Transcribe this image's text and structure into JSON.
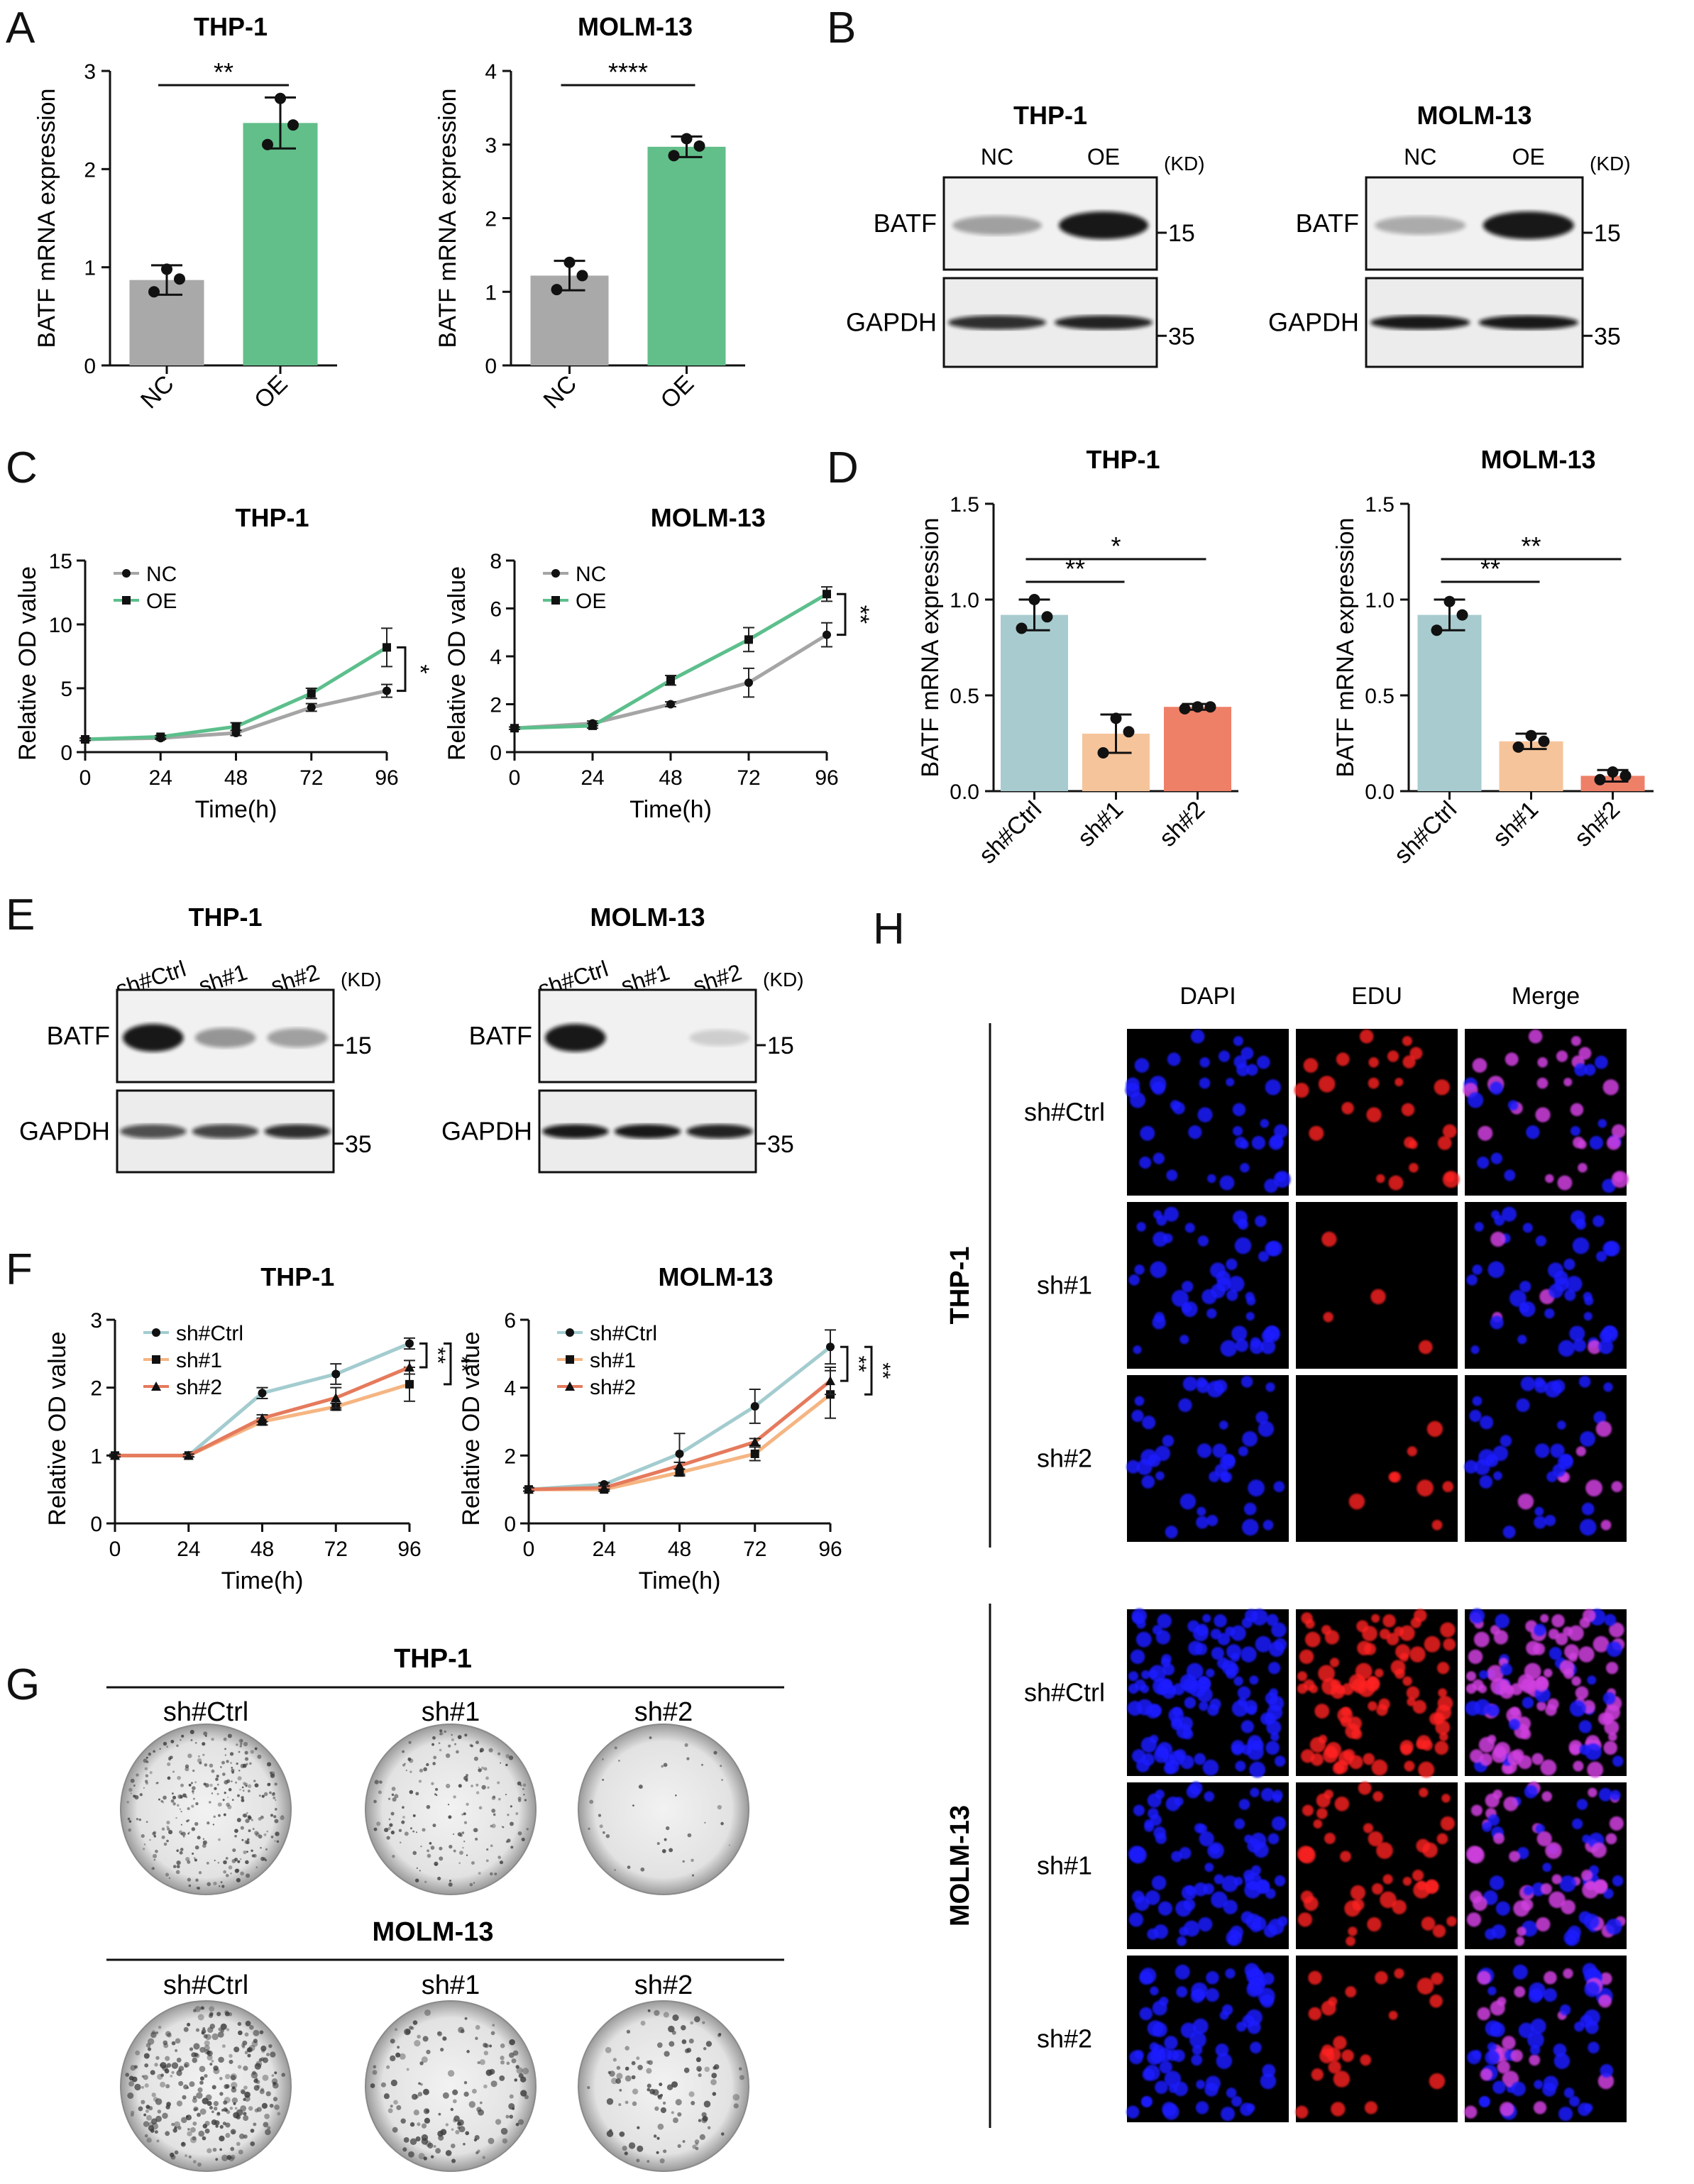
{
  "panels": {
    "A": {
      "letter": "A"
    },
    "B": {
      "letter": "B"
    },
    "C": {
      "letter": "C"
    },
    "D": {
      "letter": "D"
    },
    "E": {
      "letter": "E"
    },
    "F": {
      "letter": "F"
    },
    "G": {
      "letter": "G"
    },
    "H": {
      "letter": "H"
    }
  },
  "colors": {
    "grey": "#a9a9a9",
    "green": "#62bf8a",
    "teal_bar": "#a8cbcf",
    "peach_bar": "#f6c49a",
    "salmon_bar": "#ee8068",
    "line_nc": "#a5a5a5",
    "line_oe": "#5cbf8c",
    "line_ctrl": "#a3cccf",
    "line_sh1": "#f5b582",
    "line_sh2": "#e57a5c",
    "dapi": "#1a1aff",
    "edu": "#ff2020",
    "merge": "#d040e0"
  },
  "western": {
    "B": {
      "units": "(KD)",
      "blots": [
        {
          "title": "THP-1",
          "lanes": [
            "NC",
            "OE"
          ],
          "proteins": [
            "BATF",
            "GAPDH"
          ],
          "markers": [
            "15",
            "35"
          ],
          "batf_intensity": [
            0.35,
            0.95
          ],
          "gapdh_intensity": [
            0.85,
            0.9
          ]
        },
        {
          "title": "MOLM-13",
          "lanes": [
            "NC",
            "OE"
          ],
          "proteins": [
            "BATF",
            "GAPDH"
          ],
          "markers": [
            "15",
            "35"
          ],
          "batf_intensity": [
            0.3,
            0.95
          ],
          "gapdh_intensity": [
            0.95,
            0.95
          ]
        }
      ]
    },
    "E": {
      "units": "(KD)",
      "blots": [
        {
          "title": "THP-1",
          "lanes": [
            "sh#Ctrl",
            "sh#1",
            "sh#2"
          ],
          "proteins": [
            "BATF",
            "GAPDH"
          ],
          "markers": [
            "15",
            "35"
          ],
          "batf_intensity": [
            0.95,
            0.4,
            0.35
          ],
          "gapdh_intensity": [
            0.7,
            0.75,
            0.85
          ]
        },
        {
          "title": "MOLM-13",
          "lanes": [
            "sh#Ctrl",
            "sh#1",
            "sh#2"
          ],
          "proteins": [
            "BATF",
            "GAPDH"
          ],
          "markers": [
            "15",
            "35"
          ],
          "batf_intensity": [
            0.95,
            0.0,
            0.15
          ],
          "gapdh_intensity": [
            0.95,
            0.95,
            0.9
          ]
        }
      ]
    }
  },
  "chart_data": [
    {
      "id": "A1",
      "type": "bar",
      "title": "THP-1",
      "categories": [
        "NC",
        "OE"
      ],
      "values": [
        0.87,
        2.47
      ],
      "errors": [
        0.15,
        0.26
      ],
      "points": [
        [
          0.98,
          0.75,
          0.88
        ],
        [
          2.72,
          2.25,
          2.45
        ]
      ],
      "ylabel": "BATF mRNA expression",
      "ylim": [
        0,
        3
      ],
      "yticks": [
        "0",
        "1",
        "2",
        "3"
      ],
      "significance": [
        {
          "pair": [
            0,
            1
          ],
          "label": "**"
        }
      ]
    },
    {
      "id": "A2",
      "type": "bar",
      "title": "MOLM-13",
      "categories": [
        "NC",
        "OE"
      ],
      "values": [
        1.22,
        2.97
      ],
      "errors": [
        0.2,
        0.14
      ],
      "points": [
        [
          1.4,
          1.03,
          1.22
        ],
        [
          3.08,
          2.85,
          2.98
        ]
      ],
      "ylabel": "BATF mRNA expression",
      "ylim": [
        0,
        4
      ],
      "yticks": [
        "0",
        "1",
        "2",
        "3",
        "4"
      ],
      "significance": [
        {
          "pair": [
            0,
            1
          ],
          "label": "****"
        }
      ]
    },
    {
      "id": "C1",
      "type": "line",
      "title": "THP-1",
      "x": [
        0,
        24,
        48,
        72,
        96
      ],
      "xlabel": "Time(h)",
      "ylabel": "Relative OD value",
      "ylim": [
        0,
        15
      ],
      "yticks": [
        "0",
        "5",
        "10",
        "15"
      ],
      "xticks": [
        "0",
        "24",
        "48",
        "72",
        "96"
      ],
      "series": [
        {
          "name": "NC",
          "values": [
            1.0,
            1.1,
            1.5,
            3.5,
            4.8
          ],
          "errors": [
            0.1,
            0.1,
            0.2,
            0.3,
            0.5
          ]
        },
        {
          "name": "OE",
          "values": [
            1.0,
            1.2,
            2.0,
            4.6,
            8.2
          ],
          "errors": [
            0.1,
            0.1,
            0.3,
            0.4,
            1.5
          ]
        }
      ],
      "significance": [
        {
          "label": "*"
        }
      ]
    },
    {
      "id": "C2",
      "type": "line",
      "title": "MOLM-13",
      "x": [
        0,
        24,
        48,
        72,
        96
      ],
      "xlabel": "Time(h)",
      "ylabel": "Relative OD value",
      "ylim": [
        0,
        8
      ],
      "yticks": [
        "0",
        "2",
        "4",
        "6",
        "8"
      ],
      "xticks": [
        "0",
        "24",
        "48",
        "72",
        "96"
      ],
      "series": [
        {
          "name": "NC",
          "values": [
            1.0,
            1.2,
            2.0,
            2.9,
            4.9
          ],
          "errors": [
            0.05,
            0.1,
            0.1,
            0.6,
            0.5
          ]
        },
        {
          "name": "OE",
          "values": [
            1.0,
            1.1,
            3.0,
            4.7,
            6.6
          ],
          "errors": [
            0.05,
            0.1,
            0.2,
            0.5,
            0.3
          ]
        }
      ],
      "significance": [
        {
          "label": "**"
        }
      ]
    },
    {
      "id": "D1",
      "type": "bar",
      "title": "THP-1",
      "categories": [
        "sh#Ctrl",
        "sh#1",
        "sh#2"
      ],
      "values": [
        0.92,
        0.3,
        0.44
      ],
      "errors": [
        0.08,
        0.1,
        0.015
      ],
      "points": [
        [
          1.0,
          0.85,
          0.91
        ],
        [
          0.38,
          0.2,
          0.31
        ],
        [
          0.44,
          0.43,
          0.44
        ]
      ],
      "ylabel": "BATF mRNA expression",
      "ylim": [
        0,
        1.5
      ],
      "yticks": [
        "0.0",
        "0.5",
        "1.0",
        "1.5"
      ],
      "significance": [
        {
          "pair": [
            0,
            1
          ],
          "label": "**"
        },
        {
          "pair": [
            0,
            2
          ],
          "label": "*"
        }
      ]
    },
    {
      "id": "D2",
      "type": "bar",
      "title": "MOLM-13",
      "categories": [
        "sh#Ctrl",
        "sh#1",
        "sh#2"
      ],
      "values": [
        0.92,
        0.26,
        0.08
      ],
      "errors": [
        0.08,
        0.04,
        0.03
      ],
      "points": [
        [
          0.99,
          0.84,
          0.92
        ],
        [
          0.29,
          0.23,
          0.26
        ],
        [
          0.1,
          0.06,
          0.08
        ]
      ],
      "ylabel": "BATF mRNA expression",
      "ylim": [
        0,
        1.5
      ],
      "yticks": [
        "0.0",
        "0.5",
        "1.0",
        "1.5"
      ],
      "significance": [
        {
          "pair": [
            0,
            1
          ],
          "label": "**"
        },
        {
          "pair": [
            0,
            2
          ],
          "label": "**"
        }
      ]
    },
    {
      "id": "F1",
      "type": "line",
      "title": "THP-1",
      "x": [
        0,
        24,
        48,
        72,
        96
      ],
      "xlabel": "Time(h)",
      "ylabel": "Relative OD value",
      "ylim": [
        0,
        3
      ],
      "yticks": [
        "0",
        "1",
        "2",
        "3"
      ],
      "xticks": [
        "0",
        "24",
        "48",
        "72",
        "96"
      ],
      "series": [
        {
          "name": "sh#Ctrl",
          "values": [
            1.0,
            1.0,
            1.92,
            2.2,
            2.65
          ],
          "errors": [
            0.02,
            0.02,
            0.08,
            0.15,
            0.08
          ]
        },
        {
          "name": "sh#1",
          "values": [
            1.0,
            1.0,
            1.5,
            1.72,
            2.05
          ],
          "errors": [
            0.02,
            0.02,
            0.05,
            0.05,
            0.25
          ]
        },
        {
          "name": "sh#2",
          "values": [
            1.0,
            1.0,
            1.55,
            1.85,
            2.3
          ],
          "errors": [
            0.02,
            0.02,
            0.05,
            0.15,
            0.1
          ]
        }
      ],
      "significance": [
        {
          "label": "**"
        },
        {
          "label": "**"
        }
      ]
    },
    {
      "id": "F2",
      "type": "line",
      "title": "MOLM-13",
      "x": [
        0,
        24,
        48,
        72,
        96
      ],
      "xlabel": "Time(h)",
      "ylabel": "Relative OD value",
      "ylim": [
        0,
        6
      ],
      "yticks": [
        "0",
        "2",
        "4",
        "6"
      ],
      "xticks": [
        "0",
        "24",
        "48",
        "72",
        "96"
      ],
      "series": [
        {
          "name": "sh#Ctrl",
          "values": [
            1.0,
            1.15,
            2.05,
            3.45,
            5.2
          ],
          "errors": [
            0.05,
            0.05,
            0.6,
            0.5,
            0.5
          ]
        },
        {
          "name": "sh#1",
          "values": [
            1.0,
            1.0,
            1.5,
            2.05,
            3.8
          ],
          "errors": [
            0.05,
            0.05,
            0.1,
            0.2,
            0.7
          ]
        },
        {
          "name": "sh#2",
          "values": [
            1.0,
            1.05,
            1.7,
            2.4,
            4.2
          ],
          "errors": [
            0.05,
            0.05,
            0.1,
            0.1,
            0.4
          ]
        }
      ],
      "significance": [
        {
          "label": "**"
        },
        {
          "label": "**"
        }
      ]
    }
  ],
  "colony": {
    "rows": [
      {
        "title": "THP-1",
        "labels": [
          "sh#Ctrl",
          "sh#1",
          "sh#2"
        ],
        "density": [
          0.95,
          0.55,
          0.12
        ]
      },
      {
        "title": "MOLM-13",
        "labels": [
          "sh#Ctrl",
          "sh#1",
          "sh#2"
        ],
        "density": [
          0.95,
          0.45,
          0.35
        ]
      }
    ]
  },
  "edu": {
    "columns": [
      "DAPI",
      "EDU",
      "Merge"
    ],
    "groups": [
      {
        "title": "THP-1",
        "rows": [
          "sh#Ctrl",
          "sh#1",
          "sh#2"
        ],
        "dapi_density": [
          0.35,
          0.4,
          0.35
        ],
        "edu_level": [
          0.8,
          0.2,
          0.15
        ]
      },
      {
        "title": "MOLM-13",
        "rows": [
          "sh#Ctrl",
          "sh#1",
          "sh#2"
        ],
        "dapi_density": [
          1.0,
          0.65,
          0.6
        ],
        "edu_level": [
          0.9,
          0.7,
          0.4
        ]
      }
    ]
  }
}
